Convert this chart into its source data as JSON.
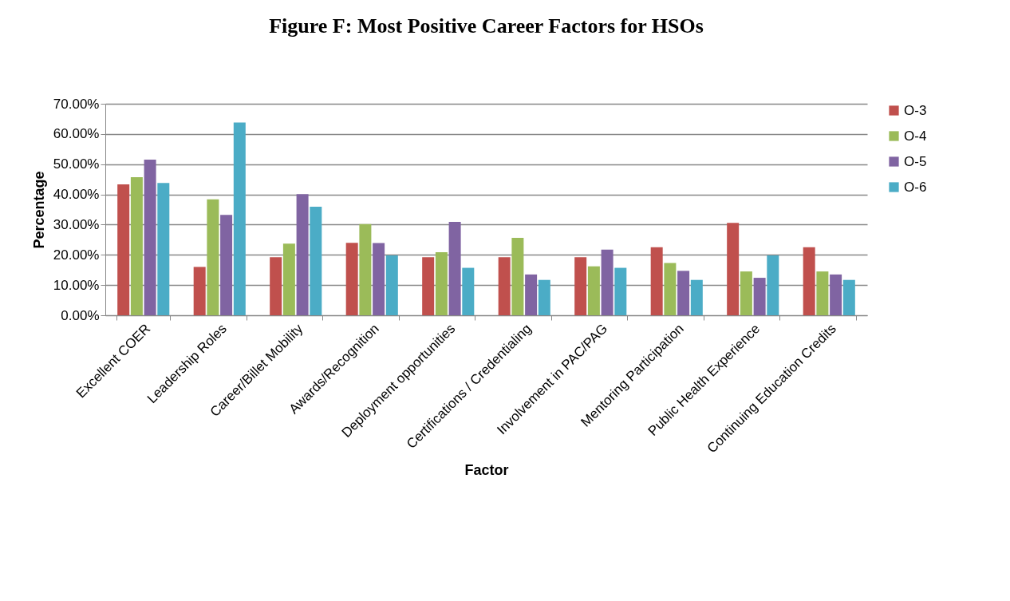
{
  "chart_data": {
    "type": "bar",
    "title": "Figure F: Most Positive Career Factors for HSOs",
    "xlabel": "Factor",
    "ylabel": "Percentage",
    "categories": [
      "Excellent COER",
      "Leadership Roles",
      "Career/Billet Mobility",
      "Awards/Recognition",
      "Deployment opportunities",
      "Certifications / Credentialing",
      "Involvement in PAC/PAG",
      "Mentoring Participation",
      "Public Health Experience",
      "Continuing Education Credits"
    ],
    "series": [
      {
        "name": "O-3",
        "color": "#c0504d",
        "values": [
          43.3,
          16.0,
          19.2,
          24.0,
          19.2,
          19.2,
          19.2,
          22.5,
          30.6,
          22.5
        ]
      },
      {
        "name": "O-4",
        "color": "#9bbb59",
        "values": [
          45.7,
          38.4,
          23.7,
          30.2,
          20.9,
          25.6,
          16.2,
          17.3,
          14.5,
          14.5
        ]
      },
      {
        "name": "O-5",
        "color": "#8064a2",
        "values": [
          51.5,
          33.2,
          40.1,
          23.9,
          30.9,
          13.5,
          21.7,
          14.7,
          12.4,
          13.5
        ]
      },
      {
        "name": "O-6",
        "color": "#4bacc6",
        "values": [
          43.8,
          63.8,
          35.9,
          19.8,
          15.7,
          11.7,
          15.7,
          11.7,
          19.8,
          11.7
        ]
      }
    ],
    "ylim": [
      0,
      70
    ],
    "yticks": [
      {
        "value": 0,
        "label": "0.00%"
      },
      {
        "value": 10,
        "label": "10.00%"
      },
      {
        "value": 20,
        "label": "20.00%"
      },
      {
        "value": 30,
        "label": "30.00%"
      },
      {
        "value": 40,
        "label": "40.00%"
      },
      {
        "value": 50,
        "label": "50.00%"
      },
      {
        "value": 60,
        "label": "60.00%"
      },
      {
        "value": 70,
        "label": "70.00%"
      }
    ],
    "grid": "y",
    "legend": "right"
  }
}
